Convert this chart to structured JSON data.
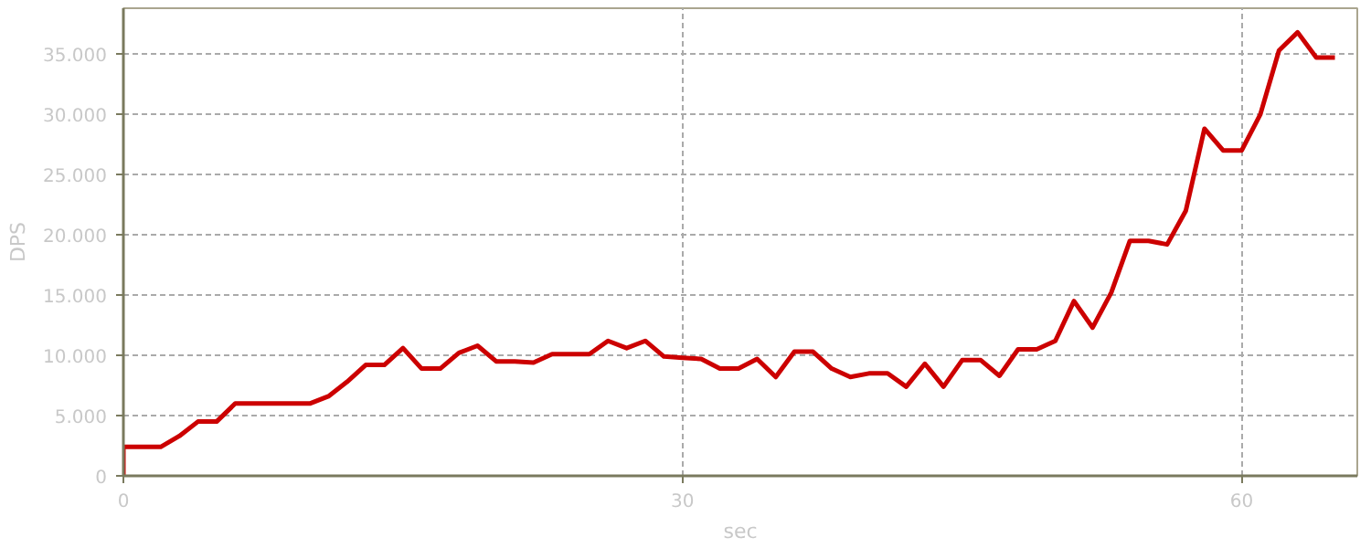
{
  "chart_data": {
    "type": "line",
    "xlabel": "sec",
    "ylabel": "DPS",
    "xlim": [
      0,
      66.2
    ],
    "ylim": [
      0,
      38800
    ],
    "xticks": [
      0,
      30,
      60
    ],
    "yticks": [
      0,
      {
        "value": 5000,
        "label": "5.000"
      },
      {
        "value": 10000,
        "label": "10.000"
      },
      {
        "value": 15000,
        "label": "15.000"
      },
      {
        "value": 20000,
        "label": "20.000"
      },
      {
        "value": 25000,
        "label": "25.000"
      },
      {
        "value": 30000,
        "label": "30.000"
      },
      {
        "value": 35000,
        "label": "35.000"
      }
    ],
    "grid": true,
    "marker": "none",
    "line_style": "solid",
    "series": [
      {
        "color": "#cc0000",
        "x": [
          0,
          0,
          1,
          2,
          3,
          4,
          5,
          6,
          7,
          8,
          9,
          10,
          11,
          12,
          13,
          14,
          15,
          16,
          17,
          18,
          19,
          20,
          21,
          22,
          23,
          24,
          25,
          26,
          27,
          28,
          29,
          30,
          31,
          32,
          33,
          34,
          35,
          36,
          37,
          38,
          39,
          40,
          41,
          42,
          43,
          44,
          45,
          46,
          47,
          48,
          49,
          50,
          51,
          52,
          53,
          54,
          55,
          56,
          57,
          58,
          59,
          60,
          61,
          62,
          63,
          64,
          65
        ],
        "values": [
          0,
          2400,
          2400,
          2400,
          3300,
          4500,
          4500,
          6000,
          6000,
          6000,
          6000,
          6000,
          6600,
          7800,
          9200,
          9200,
          10600,
          8900,
          8900,
          10200,
          10800,
          9500,
          9500,
          9400,
          10100,
          10100,
          10100,
          11200,
          10600,
          11200,
          9900,
          9800,
          9700,
          8900,
          8900,
          9700,
          8200,
          10300,
          10300,
          8900,
          8200,
          8500,
          8500,
          7400,
          9300,
          7400,
          9600,
          9600,
          8300,
          10500,
          10500,
          11200,
          14500,
          12300,
          15200,
          19500,
          19500,
          19200,
          22000,
          28800,
          27000,
          27000,
          30000,
          35300,
          36800,
          34700,
          34700
        ]
      }
    ]
  }
}
